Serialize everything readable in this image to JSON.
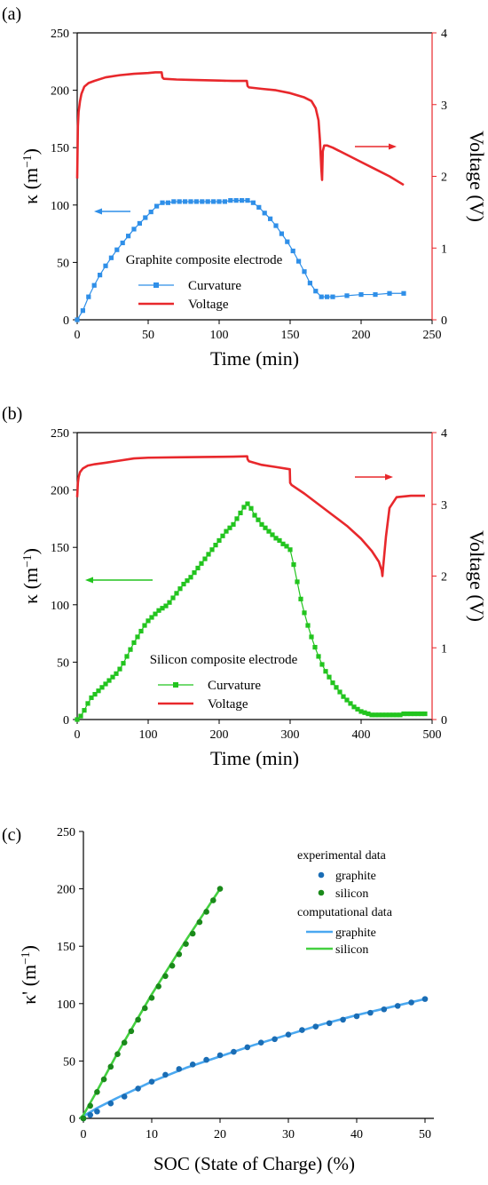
{
  "chart_data": [
    {
      "type": "line",
      "panel_label": "(a)",
      "annotation": "Graphite composite electrode",
      "xlabel": "Time (min)",
      "ylabel_left": "κ (m⁻¹)",
      "ylabel_right": "Voltage (V)",
      "xlim": [
        0,
        250
      ],
      "ylim_left": [
        0,
        250
      ],
      "ylim_right": [
        0,
        4
      ],
      "x_ticks": [
        0,
        50,
        100,
        150,
        200,
        250
      ],
      "y_ticks_left": [
        0,
        50,
        100,
        150,
        200,
        250
      ],
      "y_ticks_right": [
        0,
        1,
        2,
        3,
        4
      ],
      "legend": [
        "Curvature",
        "Voltage"
      ],
      "colors": {
        "curvature": "#2f8fe8",
        "voltage": "#e8282c",
        "right_axis": "#e8282c"
      },
      "series": [
        {
          "name": "Curvature",
          "axis": "left",
          "marker": "square",
          "x": [
            0,
            4,
            8,
            12,
            16,
            20,
            24,
            28,
            32,
            36,
            40,
            44,
            48,
            52,
            56,
            60,
            64,
            68,
            72,
            76,
            80,
            84,
            88,
            92,
            96,
            100,
            104,
            108,
            112,
            116,
            120,
            124,
            128,
            132,
            136,
            140,
            144,
            148,
            152,
            156,
            160,
            164,
            168,
            172,
            176,
            180,
            190,
            200,
            210,
            220,
            230
          ],
          "y": [
            0,
            8,
            20,
            30,
            39,
            47,
            54,
            61,
            67,
            73,
            79,
            84,
            89,
            94,
            99,
            102,
            102,
            103,
            103,
            103,
            103,
            103,
            103,
            103,
            103,
            103,
            103,
            104,
            104,
            104,
            104,
            102,
            98,
            93,
            88,
            82,
            75,
            68,
            60,
            51,
            42,
            32,
            25,
            20,
            20,
            20,
            21,
            22,
            22,
            23,
            23
          ]
        },
        {
          "name": "Voltage",
          "axis": "right",
          "x": [
            0,
            0.5,
            1,
            2,
            3,
            5,
            8,
            12,
            20,
            30,
            40,
            50,
            55,
            58,
            59.5,
            60,
            61,
            70,
            80,
            90,
            100,
            110,
            118,
            119.5,
            120,
            121,
            130,
            140,
            150,
            160,
            165,
            168,
            170,
            171,
            172,
            172.5,
            173,
            174,
            176,
            180,
            190,
            200,
            210,
            220,
            230
          ],
          "y": [
            1.97,
            2.7,
            2.9,
            3.05,
            3.15,
            3.25,
            3.3,
            3.33,
            3.38,
            3.41,
            3.43,
            3.44,
            3.45,
            3.45,
            3.45,
            3.38,
            3.36,
            3.35,
            3.345,
            3.34,
            3.335,
            3.33,
            3.33,
            3.33,
            3.26,
            3.24,
            3.22,
            3.2,
            3.16,
            3.1,
            3.05,
            2.95,
            2.78,
            2.5,
            2.1,
            1.95,
            2.35,
            2.43,
            2.43,
            2.4,
            2.3,
            2.2,
            2.1,
            2.0,
            1.88
          ]
        }
      ]
    },
    {
      "type": "line",
      "panel_label": "(b)",
      "annotation": "Silicon composite electrode",
      "xlabel": "Time (min)",
      "ylabel_left": "κ (m⁻¹)",
      "ylabel_right": "Voltage (V)",
      "xlim": [
        0,
        500
      ],
      "ylim_left": [
        0,
        250
      ],
      "ylim_right": [
        0,
        4
      ],
      "x_ticks": [
        0,
        100,
        200,
        300,
        400,
        500
      ],
      "y_ticks_left": [
        0,
        50,
        100,
        150,
        200,
        250
      ],
      "y_ticks_right": [
        0,
        1,
        2,
        3,
        4
      ],
      "legend": [
        "Curvature",
        "Voltage"
      ],
      "colors": {
        "curvature": "#22c41e",
        "voltage": "#e8282c",
        "right_axis": "#e8282c"
      },
      "series": [
        {
          "name": "Curvature",
          "axis": "left",
          "marker": "square",
          "x": [
            0,
            5,
            10,
            15,
            20,
            25,
            30,
            35,
            40,
            45,
            50,
            55,
            60,
            65,
            70,
            75,
            80,
            85,
            90,
            95,
            100,
            105,
            110,
            115,
            120,
            125,
            130,
            135,
            140,
            145,
            150,
            155,
            160,
            165,
            170,
            175,
            180,
            185,
            190,
            195,
            200,
            205,
            210,
            215,
            220,
            225,
            230,
            235,
            240,
            245,
            250,
            255,
            260,
            265,
            270,
            275,
            280,
            285,
            290,
            295,
            300,
            305,
            310,
            315,
            320,
            325,
            330,
            335,
            340,
            345,
            350,
            355,
            360,
            365,
            370,
            375,
            380,
            385,
            390,
            395,
            400,
            405,
            410,
            415,
            420,
            425,
            430,
            435,
            440,
            445,
            450,
            455,
            460,
            465,
            470,
            475,
            480,
            485,
            490
          ],
          "y": [
            0,
            3,
            8,
            14,
            19,
            22,
            25,
            28,
            31,
            34,
            37,
            40,
            44,
            49,
            55,
            61,
            67,
            72,
            77,
            82,
            86,
            89,
            92,
            95,
            97,
            99,
            102,
            106,
            110,
            114,
            118,
            121,
            124,
            128,
            132,
            136,
            140,
            144,
            148,
            152,
            156,
            160,
            164,
            167,
            170,
            175,
            180,
            185,
            188,
            184,
            178,
            174,
            170,
            167,
            164,
            161,
            158,
            156,
            153,
            151,
            148,
            135,
            120,
            105,
            93,
            82,
            72,
            63,
            55,
            48,
            42,
            37,
            32,
            28,
            24,
            20,
            17,
            14,
            11,
            9,
            7,
            6,
            5,
            4,
            4,
            4,
            4,
            4,
            4,
            4,
            4,
            4,
            5,
            5,
            5,
            5,
            5,
            5,
            5
          ],
          "markers_every": 1
        },
        {
          "name": "Voltage",
          "axis": "right",
          "x": [
            0,
            0.5,
            1,
            2,
            4,
            8,
            15,
            25,
            40,
            60,
            80,
            100,
            140,
            180,
            220,
            238,
            239.5,
            240,
            242,
            260,
            280,
            299,
            299.5,
            300,
            302,
            320,
            340,
            360,
            380,
            400,
            415,
            425,
            429,
            430,
            431,
            435,
            440,
            450,
            470,
            490
          ],
          "y": [
            3.1,
            3.2,
            3.3,
            3.38,
            3.45,
            3.5,
            3.54,
            3.56,
            3.58,
            3.61,
            3.64,
            3.65,
            3.655,
            3.66,
            3.665,
            3.67,
            3.67,
            3.63,
            3.6,
            3.55,
            3.52,
            3.49,
            3.49,
            3.3,
            3.27,
            3.15,
            3.0,
            2.85,
            2.7,
            2.52,
            2.35,
            2.2,
            2.08,
            2.0,
            2.12,
            2.55,
            2.95,
            3.1,
            3.12,
            3.12
          ]
        }
      ]
    },
    {
      "type": "scatter",
      "panel_label": "(c)",
      "xlabel": "SOC (State of Charge) (%)",
      "ylabel": "κ' (m⁻¹)",
      "xlim": [
        0,
        50
      ],
      "ylim": [
        0,
        250
      ],
      "x_ticks": [
        0,
        10,
        20,
        30,
        40,
        50
      ],
      "y_ticks": [
        0,
        50,
        100,
        150,
        200,
        250
      ],
      "legend_groups": [
        {
          "title": "experimental data",
          "items": [
            "graphite",
            "silicon"
          ]
        },
        {
          "title": "computational data",
          "items": [
            "graphite",
            "silicon"
          ]
        }
      ],
      "colors": {
        "exp_graphite": "#1a6db5",
        "exp_silicon": "#1a8a1a",
        "comp_graphite": "#4aa8f0",
        "comp_silicon": "#44d040"
      },
      "series": [
        {
          "name": "graphite",
          "kind": "experimental",
          "x": [
            0,
            1,
            2,
            4,
            6,
            8,
            10,
            12,
            14,
            16,
            18,
            20,
            22,
            24,
            26,
            28,
            30,
            32,
            34,
            36,
            38,
            40,
            42,
            44,
            46,
            48,
            50
          ],
          "y": [
            0,
            3,
            6,
            13,
            19,
            26,
            32,
            38,
            43,
            47,
            51,
            55,
            58,
            62,
            66,
            69,
            73,
            77,
            80,
            83,
            86,
            89,
            92,
            95,
            98,
            101,
            104
          ]
        },
        {
          "name": "silicon",
          "kind": "experimental",
          "x": [
            0,
            1,
            2,
            3,
            4,
            5,
            6,
            7,
            8,
            9,
            10,
            11,
            12,
            13,
            14,
            15,
            16,
            17,
            18,
            19,
            20
          ],
          "y": [
            0,
            11,
            23,
            34,
            45,
            56,
            66,
            76,
            86,
            96,
            105,
            115,
            124,
            133,
            143,
            152,
            161,
            171,
            180,
            190,
            200
          ]
        },
        {
          "name": "graphite",
          "kind": "computational",
          "x": [
            -0.5,
            0,
            2,
            5,
            10,
            15,
            20,
            25,
            30,
            35,
            40,
            45,
            50
          ],
          "y": [
            0,
            2,
            9,
            18,
            32,
            44,
            54,
            64,
            73,
            82,
            90,
            97,
            104
          ]
        },
        {
          "name": "silicon",
          "kind": "computational",
          "x": [
            -0.5,
            0,
            2,
            5,
            10,
            15,
            20
          ],
          "y": [
            0,
            3,
            24,
            57,
            108,
            155,
            200
          ]
        }
      ]
    }
  ]
}
